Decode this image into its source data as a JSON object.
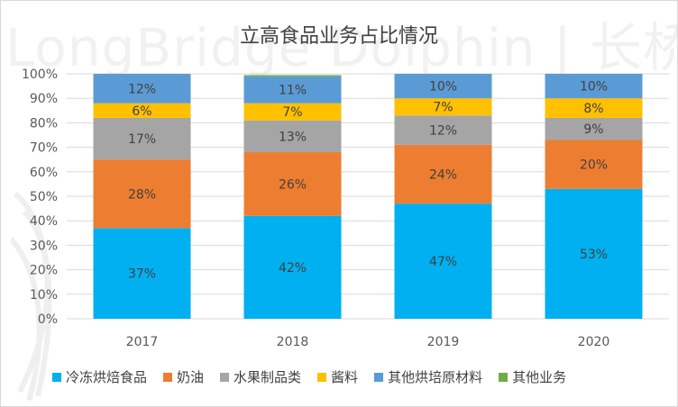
{
  "watermark": "LongBridge Dolphin | 长桥海豚投研",
  "chart_data": {
    "type": "bar",
    "stacked": true,
    "percent": true,
    "title": "立高食品业务占比情况",
    "categories": [
      "2017",
      "2018",
      "2019",
      "2020"
    ],
    "ylim": [
      0,
      100
    ],
    "yticks": [
      "0%",
      "10%",
      "20%",
      "30%",
      "40%",
      "50%",
      "60%",
      "70%",
      "80%",
      "90%",
      "100%"
    ],
    "legend_position": "bottom",
    "series": [
      {
        "name": "冷冻烘焙食品",
        "color": "#00B0F0",
        "values": [
          37,
          42,
          47,
          53
        ],
        "labels": [
          "37%",
          "42%",
          "47%",
          "53%"
        ]
      },
      {
        "name": "奶油",
        "color": "#ED7D31",
        "values": [
          28,
          26,
          24,
          20
        ],
        "labels": [
          "28%",
          "26%",
          "24%",
          "20%"
        ]
      },
      {
        "name": "水果制品类",
        "color": "#A5A5A5",
        "values": [
          17,
          13,
          12,
          9
        ],
        "labels": [
          "17%",
          "13%",
          "12%",
          "9%"
        ]
      },
      {
        "name": "酱料",
        "color": "#FFC000",
        "values": [
          6,
          7,
          7,
          8
        ],
        "labels": [
          "6%",
          "7%",
          "7%",
          "8%"
        ]
      },
      {
        "name": "其他烘培原材料",
        "color": "#5B9BD5",
        "values": [
          12,
          11,
          10,
          10
        ],
        "labels": [
          "12%",
          "11%",
          "10%",
          "10%"
        ]
      },
      {
        "name": "其他业务",
        "color": "#70AD47",
        "values": [
          1,
          0.5,
          0.5,
          0.3
        ],
        "labels": [
          "",
          "",
          "",
          ""
        ]
      }
    ]
  }
}
